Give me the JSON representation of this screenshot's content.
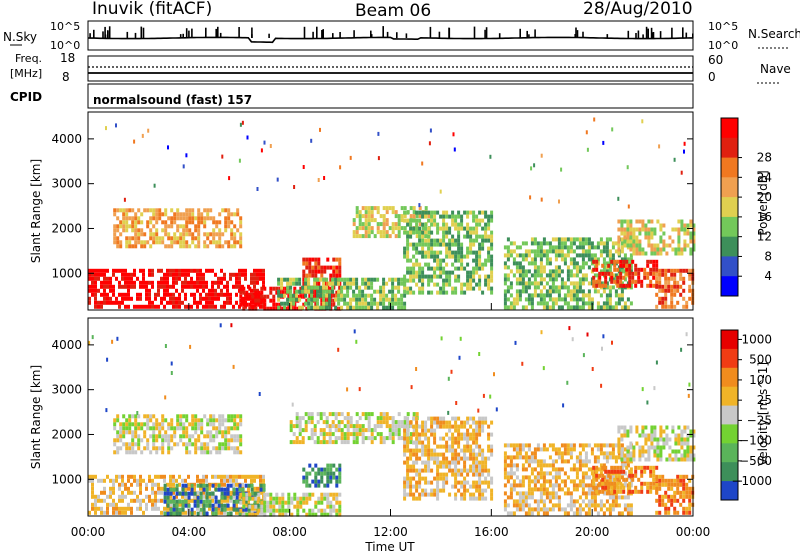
{
  "header": {
    "station": "Inuvik (fitACF)",
    "beam": "Beam 06",
    "date": "28/Aug/2010"
  },
  "noise_panel": {
    "left_label": "N.Sky",
    "right_label": "N.Search",
    "left_ticks": [
      "10^5",
      "10^0"
    ],
    "right_ticks": [
      "10^5",
      "10^0"
    ]
  },
  "freq_panel": {
    "left_label_1": "Freq.",
    "left_label_2": "[MHz]",
    "right_label": "Nave",
    "left_ticks": [
      "18",
      "8"
    ],
    "right_ticks": [
      "60",
      "0"
    ]
  },
  "cpid_panel": {
    "label": "CPID",
    "text": "normalsound (fast) 157"
  },
  "x_axis": {
    "label": "Time UT",
    "ticks": [
      "00:00",
      "04:00",
      "08:00",
      "12:00",
      "16:00",
      "20:00",
      "00:00"
    ]
  },
  "chart_data": [
    {
      "type": "heatmap",
      "title": "",
      "ylabel": "Slant Range [km]",
      "xlabel": "Time UT",
      "x_range_hours": [
        0,
        24
      ],
      "ylim": [
        180,
        4600
      ],
      "y_ticks": [
        "1000",
        "2000",
        "3000",
        "4000"
      ],
      "colorbar": {
        "label": "Power [dB]",
        "ticks": [
          "4",
          "8",
          "12",
          "16",
          "20",
          "24",
          "28"
        ],
        "colors": [
          "#0000ff",
          "#3250c8",
          "#3d8f5a",
          "#73c85a",
          "#e0d050",
          "#f0a050",
          "#f07820",
          "#e02010",
          "#ff0000"
        ]
      },
      "bands": [
        {
          "t0": 0.0,
          "t1": 7.0,
          "r0": 250,
          "r1": 1100,
          "level": 8
        },
        {
          "t0": 1.0,
          "t1": 6.0,
          "r0": 1600,
          "r1": 2450,
          "level": 5
        },
        {
          "t0": 6.0,
          "t1": 10.0,
          "r0": 250,
          "r1": 700,
          "level": 8
        },
        {
          "t0": 8.5,
          "t1": 10.0,
          "r0": 500,
          "r1": 1350,
          "level": 7
        },
        {
          "t0": 7.5,
          "t1": 12.5,
          "r0": 250,
          "r1": 900,
          "level": 3
        },
        {
          "t0": 10.5,
          "t1": 13.5,
          "r0": 1800,
          "r1": 2500,
          "level": 4
        },
        {
          "t0": 12.5,
          "t1": 16.0,
          "r0": 600,
          "r1": 2400,
          "level": 3
        },
        {
          "t0": 16.5,
          "t1": 21.5,
          "r0": 250,
          "r1": 1800,
          "level": 3
        },
        {
          "t0": 20.0,
          "t1": 22.5,
          "r0": 700,
          "r1": 1300,
          "level": 7
        },
        {
          "t0": 21.0,
          "t1": 24.0,
          "r0": 1400,
          "r1": 2200,
          "level": 4
        },
        {
          "t0": 22.5,
          "t1": 24.0,
          "r0": 250,
          "r1": 1100,
          "level": 6
        }
      ]
    },
    {
      "type": "heatmap",
      "title": "",
      "ylabel": "Slant Range [km]",
      "xlabel": "Time UT",
      "x_range_hours": [
        0,
        24
      ],
      "ylim": [
        180,
        4600
      ],
      "y_ticks": [
        "1000",
        "2000",
        "3000",
        "4000"
      ],
      "colorbar": {
        "label": "Velocity [m s^-1]",
        "ticks": [
          "1000",
          "500",
          "100",
          "25",
          "−25",
          "−100",
          "−500",
          "−1000"
        ],
        "colors": [
          "#1e46c8",
          "#3d8f5a",
          "#5ab45a",
          "#73d232",
          "#c8c8c8",
          "#f0b428",
          "#f08c1e",
          "#f03c14",
          "#e60000"
        ]
      },
      "bands": [
        {
          "t0": 0.0,
          "t1": 7.0,
          "r0": 250,
          "r1": 1100,
          "level": 5
        },
        {
          "t0": 1.0,
          "t1": 6.0,
          "r0": 1600,
          "r1": 2450,
          "level": 4
        },
        {
          "t0": 3.0,
          "t1": 7.0,
          "r0": 250,
          "r1": 900,
          "level": 1
        },
        {
          "t0": 6.0,
          "t1": 10.0,
          "r0": 250,
          "r1": 700,
          "level": 4
        },
        {
          "t0": 8.5,
          "t1": 10.0,
          "r0": 900,
          "r1": 1350,
          "level": 1
        },
        {
          "t0": 8.0,
          "t1": 13.0,
          "r0": 1800,
          "r1": 2500,
          "level": 4
        },
        {
          "t0": 12.5,
          "t1": 16.0,
          "r0": 600,
          "r1": 2400,
          "level": 5
        },
        {
          "t0": 16.5,
          "t1": 21.5,
          "r0": 250,
          "r1": 1800,
          "level": 5
        },
        {
          "t0": 20.0,
          "t1": 22.5,
          "r0": 700,
          "r1": 1300,
          "level": 6
        },
        {
          "t0": 21.0,
          "t1": 24.0,
          "r0": 1400,
          "r1": 2200,
          "level": 4
        },
        {
          "t0": 22.5,
          "t1": 24.0,
          "r0": 250,
          "r1": 1100,
          "level": 6
        }
      ]
    }
  ]
}
